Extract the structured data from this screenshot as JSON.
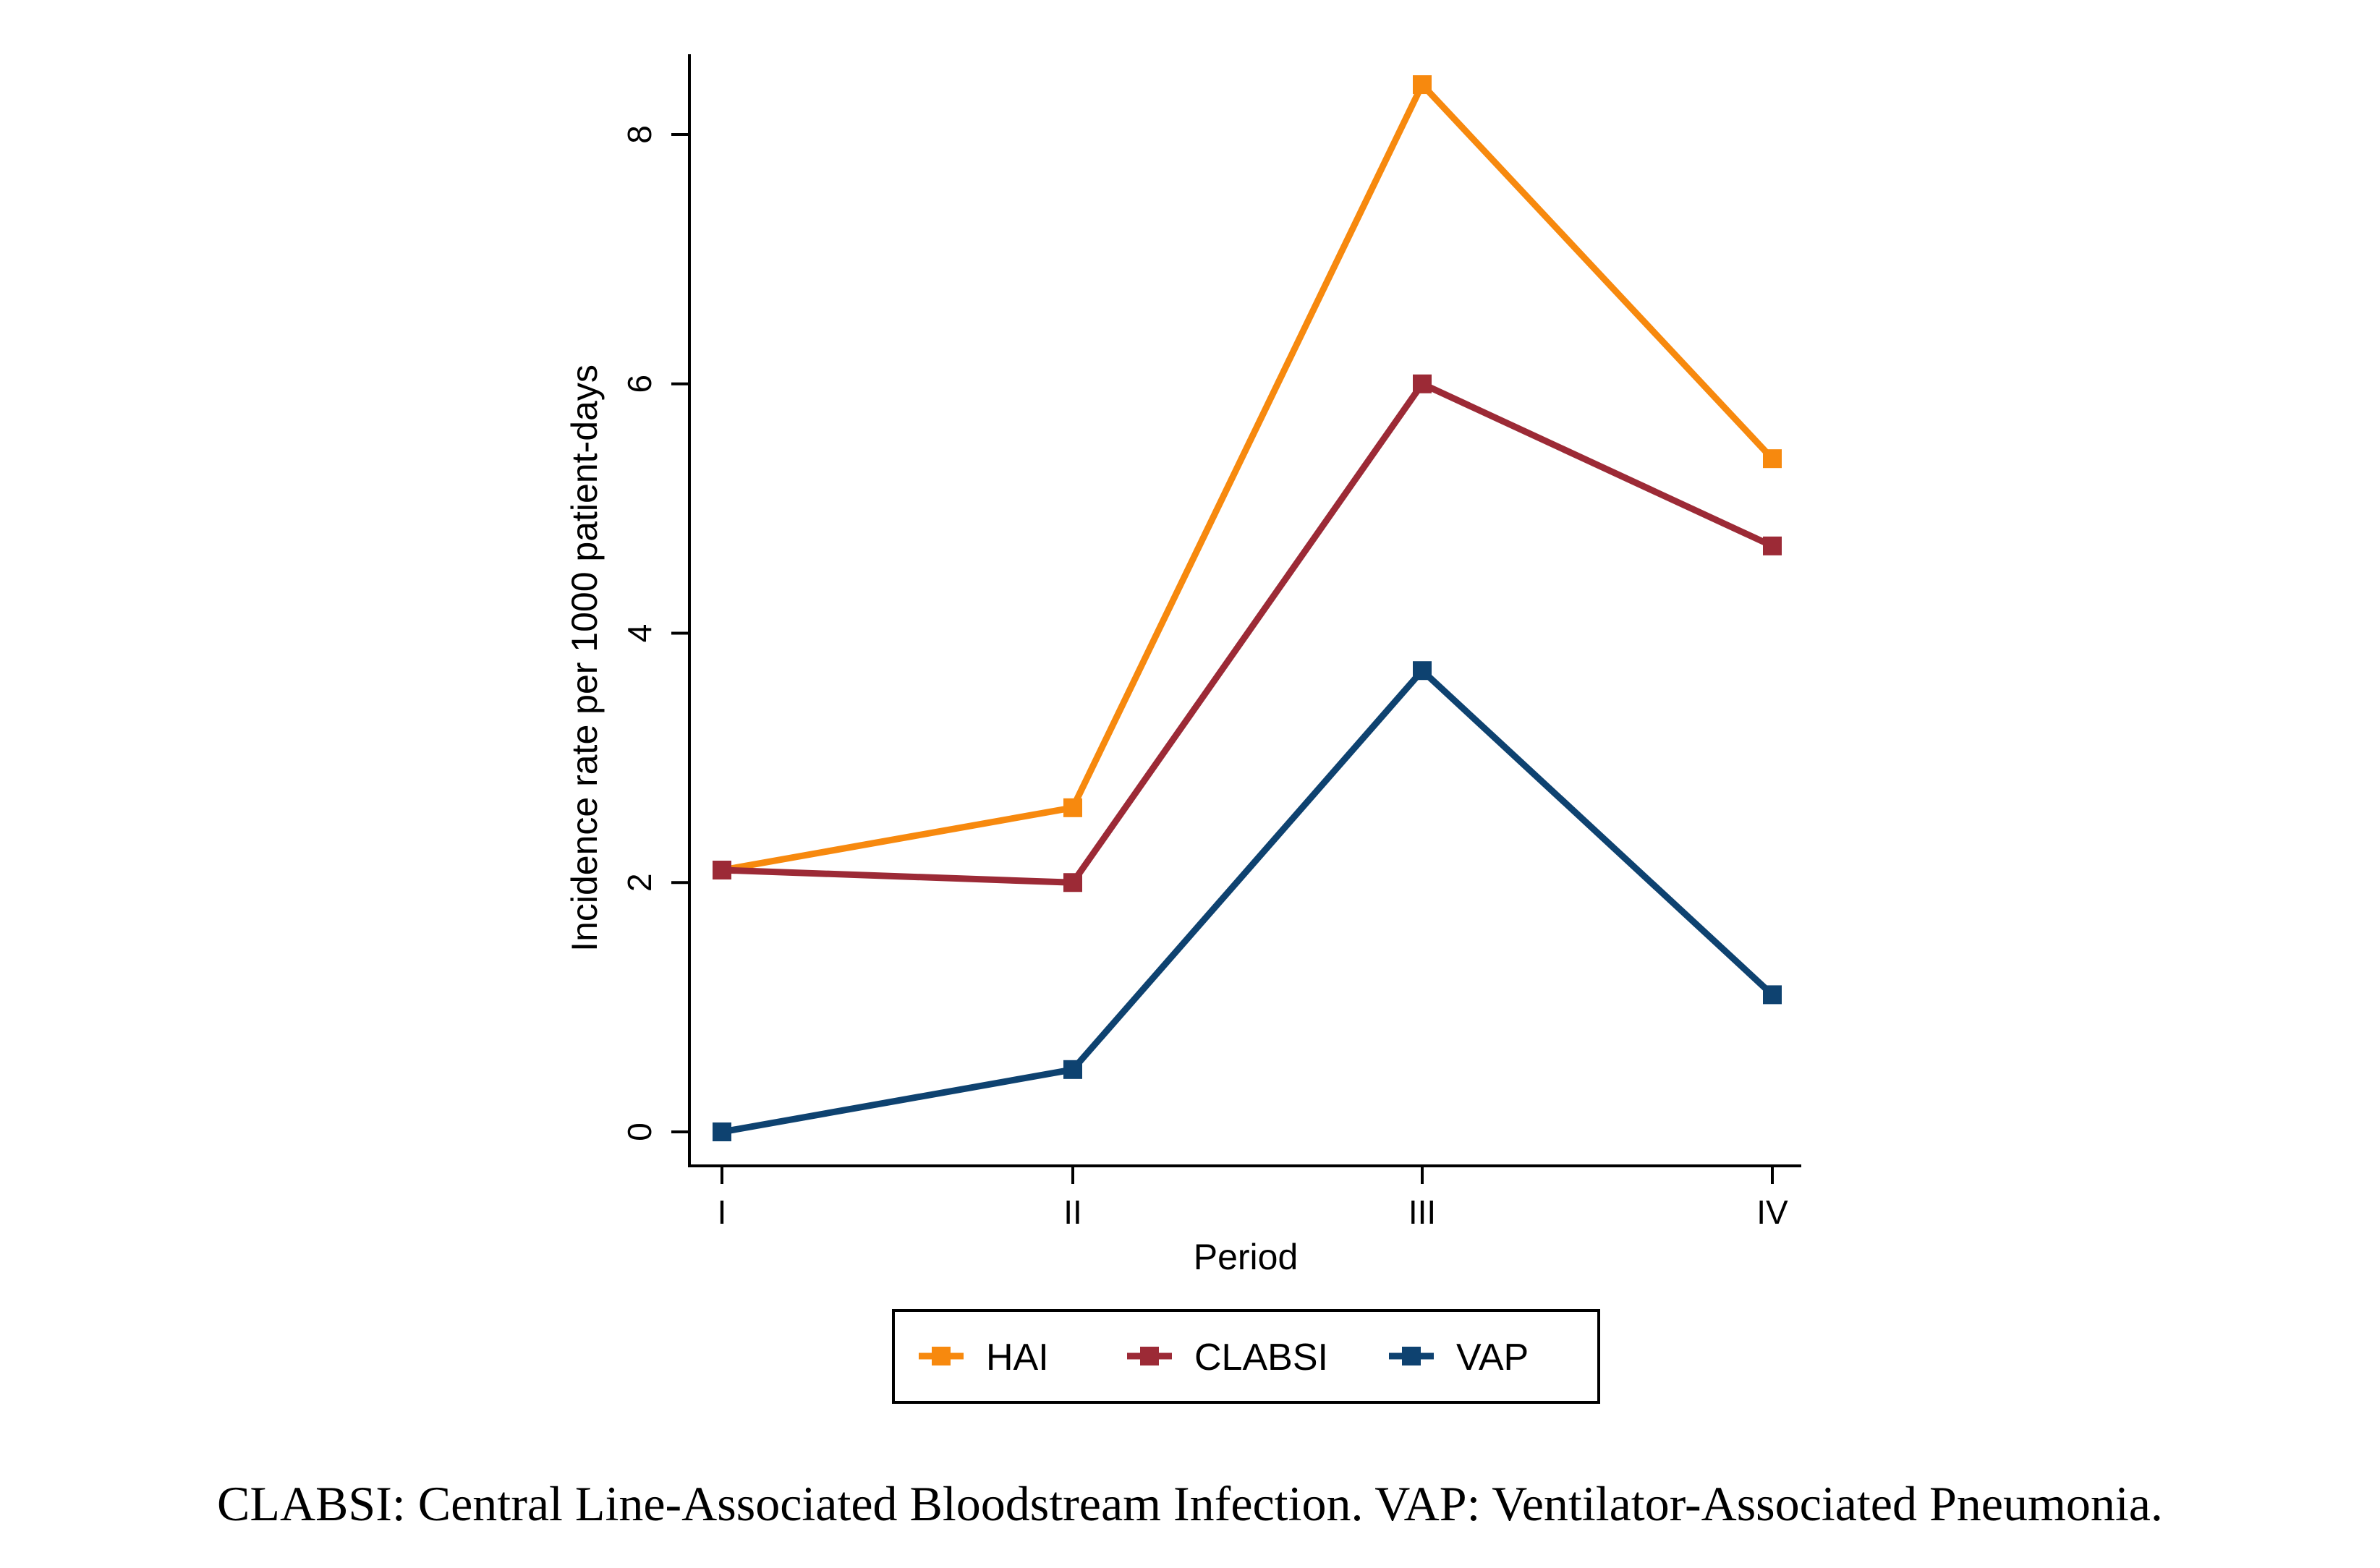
{
  "chart_data": {
    "type": "line",
    "title": "",
    "xlabel": "Period",
    "ylabel": "Incidence rate per 1000 patient-days",
    "categories": [
      "I",
      "II",
      "III",
      "IV"
    ],
    "ylim": [
      0,
      8.4
    ],
    "yticks": [
      0,
      2,
      4,
      6,
      8
    ],
    "grid": false,
    "legend_position": "bottom",
    "series": [
      {
        "name": "HAI",
        "color": "#F7890E",
        "values": [
          2.1,
          2.6,
          8.4,
          5.4
        ]
      },
      {
        "name": "CLABSI",
        "color": "#9C2A36",
        "values": [
          2.1,
          2.0,
          6.0,
          4.7
        ]
      },
      {
        "name": "VAP",
        "color": "#0E4270",
        "values": [
          0.0,
          0.5,
          3.7,
          1.1
        ]
      }
    ]
  },
  "caption": "CLABSI: Central Line-Associated Bloodstream Infection. VAP: Ventilator-Associated Pneumonia."
}
